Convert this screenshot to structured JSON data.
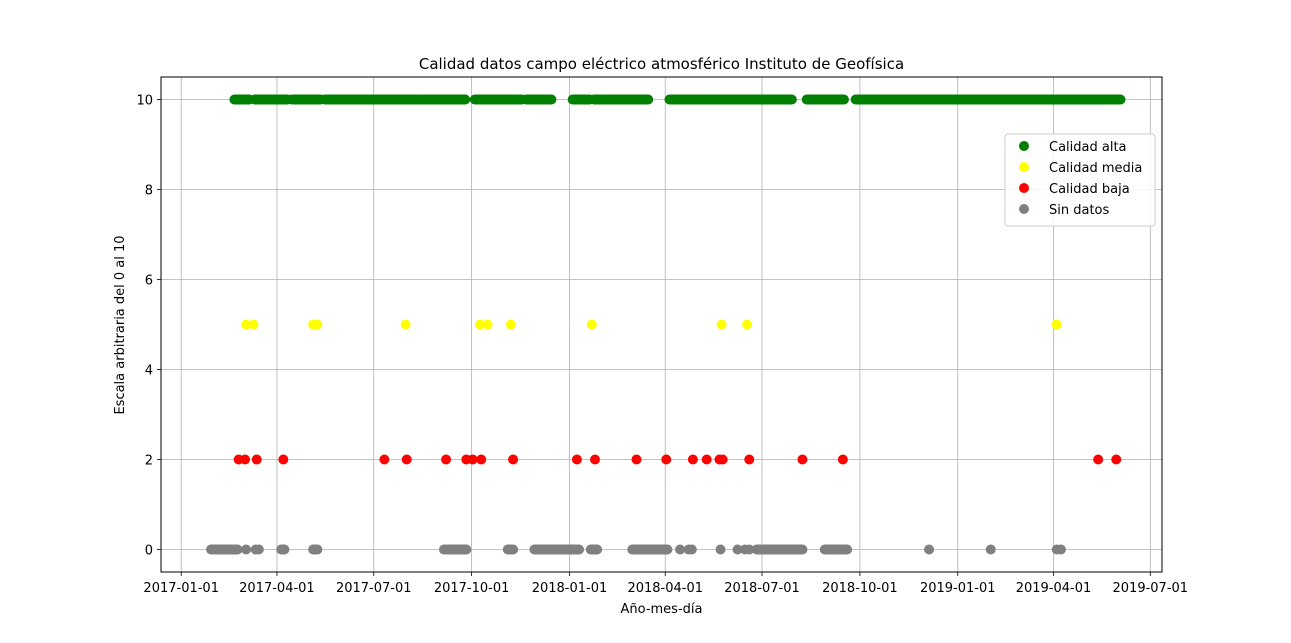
{
  "chart_data": {
    "type": "scatter",
    "title": "Calidad datos campo eléctrico atmosférico Instituto de Geofísica",
    "xlabel": "Año-mes-día",
    "ylabel": "Escala arbitraria del 0 al 10",
    "x_axis_type": "date",
    "xlim": [
      "2016-12-13",
      "2019-07-12"
    ],
    "ylim": [
      -0.5,
      10.5
    ],
    "x_ticks": [
      "2017-01-01",
      "2017-04-01",
      "2017-07-01",
      "2017-10-01",
      "2018-01-01",
      "2018-04-01",
      "2018-07-01",
      "2018-10-01",
      "2019-01-01",
      "2019-04-01",
      "2019-07-01"
    ],
    "y_ticks": [
      0,
      2,
      4,
      6,
      8,
      10
    ],
    "grid": true,
    "legend_position": "upper-right",
    "series": [
      {
        "name": "Calidad alta",
        "color": "#008000",
        "value": 10,
        "ranges": [
          [
            "2017-02-20",
            "2017-03-06"
          ],
          [
            "2017-03-11",
            "2017-04-11"
          ],
          [
            "2017-04-15",
            "2017-05-12"
          ],
          [
            "2017-05-16",
            "2017-08-11"
          ],
          [
            "2017-08-13",
            "2017-09-25"
          ],
          [
            "2017-10-04",
            "2017-11-17"
          ],
          [
            "2017-11-21",
            "2017-12-15"
          ],
          [
            "2018-01-04",
            "2018-01-20"
          ],
          [
            "2018-01-24",
            "2018-03-16"
          ],
          [
            "2018-04-05",
            "2018-07-29"
          ],
          [
            "2018-08-12",
            "2018-09-16"
          ],
          [
            "2018-09-27",
            "2019-05-14"
          ],
          [
            "2019-04-06",
            "2019-06-03"
          ]
        ]
      },
      {
        "name": "Calidad media",
        "color": "#ffff00",
        "value": 5,
        "points": [
          "2017-03-03",
          "2017-03-10",
          "2017-05-05",
          "2017-05-09",
          "2017-07-31",
          "2017-10-09",
          "2017-10-16",
          "2017-11-07",
          "2018-01-22",
          "2018-05-24",
          "2018-06-17",
          "2019-04-04"
        ]
      },
      {
        "name": "Calidad baja",
        "color": "#ff0000",
        "value": 2,
        "points": [
          "2017-02-24",
          "2017-03-02",
          "2017-03-13",
          "2017-04-07",
          "2017-07-11",
          "2017-08-01",
          "2017-09-07",
          "2017-09-26",
          "2017-10-02",
          "2017-10-10",
          "2017-11-09",
          "2018-01-08",
          "2018-01-25",
          "2018-03-05",
          "2018-04-02",
          "2018-04-27",
          "2018-05-10",
          "2018-05-22",
          "2018-05-25",
          "2018-06-19",
          "2018-08-08",
          "2018-09-15",
          "2019-05-13",
          "2019-05-30"
        ]
      },
      {
        "name": "Sin datos",
        "color": "#808080",
        "value": 0,
        "ranges": [
          [
            "2017-01-29",
            "2017-02-23"
          ],
          [
            "2017-04-05",
            "2017-04-08"
          ],
          [
            "2017-05-05",
            "2017-05-09"
          ],
          [
            "2017-09-05",
            "2017-09-26"
          ],
          [
            "2017-11-04",
            "2017-11-09"
          ],
          [
            "2017-11-29",
            "2018-01-10"
          ],
          [
            "2018-01-21",
            "2018-01-27"
          ],
          [
            "2018-03-01",
            "2018-04-03"
          ],
          [
            "2018-06-26",
            "2018-08-08"
          ],
          [
            "2018-08-29",
            "2018-09-19"
          ]
        ],
        "points": [
          "2017-03-03",
          "2017-03-12",
          "2017-03-15",
          "2018-04-15",
          "2018-04-23",
          "2018-04-26",
          "2018-05-23",
          "2018-06-08",
          "2018-06-15",
          "2018-06-19",
          "2018-12-05",
          "2019-02-01",
          "2019-04-04",
          "2019-04-08"
        ]
      }
    ]
  }
}
